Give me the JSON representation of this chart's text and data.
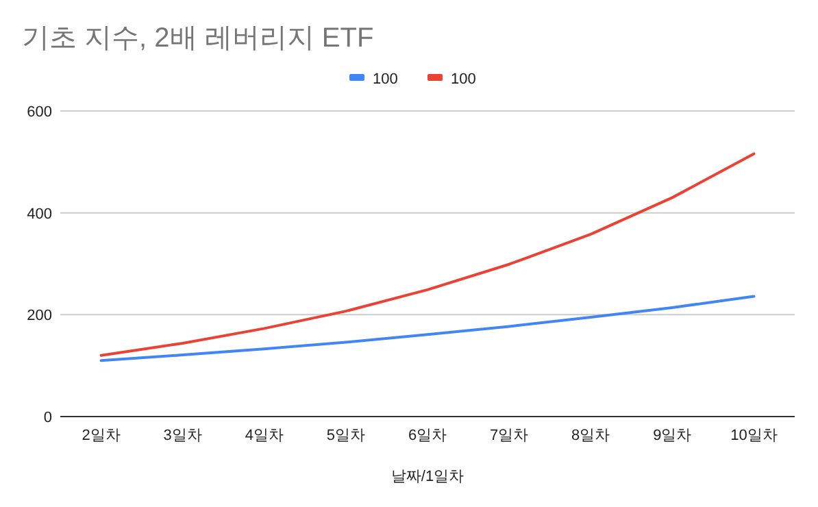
{
  "chart_data": {
    "type": "line",
    "title": "기초 지수, 2배 레버리지 ETF",
    "xlabel": "날짜/1일차",
    "categories": [
      "2일차",
      "3일차",
      "4일차",
      "5일차",
      "6일차",
      "7일차",
      "8일차",
      "9일차",
      "10일차"
    ],
    "series": [
      {
        "name": "100",
        "color": "#4285f4",
        "values": [
          110,
          121,
          133,
          146,
          161,
          177,
          195,
          214,
          236
        ]
      },
      {
        "name": "100",
        "color": "#ea4335",
        "values": [
          120,
          144,
          173,
          207,
          249,
          299,
          358,
          430,
          516
        ]
      }
    ],
    "ylim": [
      0,
      600
    ],
    "yticks": [
      0,
      200,
      400,
      600
    ],
    "grid": "y",
    "legend": "top"
  }
}
